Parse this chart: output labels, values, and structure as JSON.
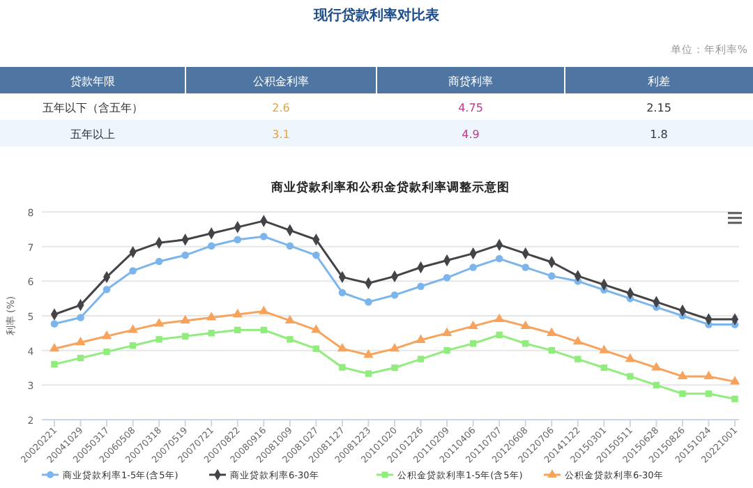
{
  "chart_data": [
    {
      "type": "other",
      "title": "现行贷款利率对比表",
      "annotations": [
        "单位：年利率%"
      ],
      "ylabel": "贷款年限",
      "categories": [
        "公积金利率",
        "商贷利率",
        "利差"
      ],
      "y_categories": [
        "五年以下（含五年）",
        "五年以上"
      ],
      "cell_labels": [
        [
          "2.6",
          "4.75",
          "2.15"
        ],
        [
          "3.1",
          "4.9",
          "1.8"
        ]
      ]
    },
    {
      "type": "line",
      "title": "商业贷款利率和公积金贷款利率调整示意图",
      "ylabel": "利率 (%)",
      "categories": [
        "20020221",
        "20041029",
        "20050317",
        "20060508",
        "20070318",
        "20070519",
        "20070721",
        "20070822",
        "20080916",
        "20081009",
        "20081027",
        "20081127",
        "20081223",
        "20101020",
        "20101226",
        "20110209",
        "20110406",
        "20110707",
        "20120608",
        "20120706",
        "20141122",
        "20150301",
        "20150511",
        "20150628",
        "20150826",
        "20151024",
        "20221001"
      ],
      "ylim": [
        2,
        8
      ],
      "yticks": [
        2,
        3,
        4,
        5,
        6,
        7,
        8
      ],
      "grid": "y",
      "legend": "bottom",
      "line_style": "solid",
      "series": [
        {
          "name": "商业贷款利率1-5年(含5年)",
          "color": "#7cb5ec",
          "marker": "circle",
          "values": [
            4.77,
            4.95,
            5.76,
            6.3,
            6.57,
            6.75,
            7.02,
            7.2,
            7.29,
            7.02,
            6.75,
            5.67,
            5.4,
            5.6,
            5.85,
            6.1,
            6.4,
            6.65,
            6.4,
            6.15,
            6.0,
            5.75,
            5.5,
            5.25,
            5.0,
            4.75,
            4.75
          ]
        },
        {
          "name": "商业贷款利率6-30年",
          "color": "#434348",
          "marker": "diamond",
          "values": [
            5.04,
            5.31,
            6.12,
            6.84,
            7.11,
            7.2,
            7.38,
            7.56,
            7.74,
            7.47,
            7.2,
            6.12,
            5.94,
            6.14,
            6.4,
            6.6,
            6.8,
            7.05,
            6.8,
            6.55,
            6.15,
            5.9,
            5.65,
            5.4,
            5.15,
            4.9,
            4.9
          ]
        },
        {
          "name": "公积金贷款利率1-5年(含5年)",
          "color": "#90ed7d",
          "marker": "square",
          "values": [
            3.6,
            3.78,
            3.96,
            4.14,
            4.32,
            4.41,
            4.5,
            4.59,
            4.59,
            4.32,
            4.05,
            3.51,
            3.33,
            3.5,
            3.75,
            4.0,
            4.2,
            4.45,
            4.2,
            4.0,
            3.75,
            3.5,
            3.25,
            3.0,
            2.75,
            2.75,
            2.6
          ]
        },
        {
          "name": "公积金贷款利率6-30年",
          "color": "#f7a35c",
          "marker": "triangle",
          "values": [
            4.05,
            4.23,
            4.41,
            4.59,
            4.77,
            4.86,
            4.95,
            5.04,
            5.13,
            4.86,
            4.59,
            4.05,
            3.87,
            4.05,
            4.3,
            4.5,
            4.7,
            4.9,
            4.7,
            4.5,
            4.25,
            4.0,
            3.75,
            3.5,
            3.25,
            3.25,
            3.1
          ]
        }
      ]
    }
  ]
}
